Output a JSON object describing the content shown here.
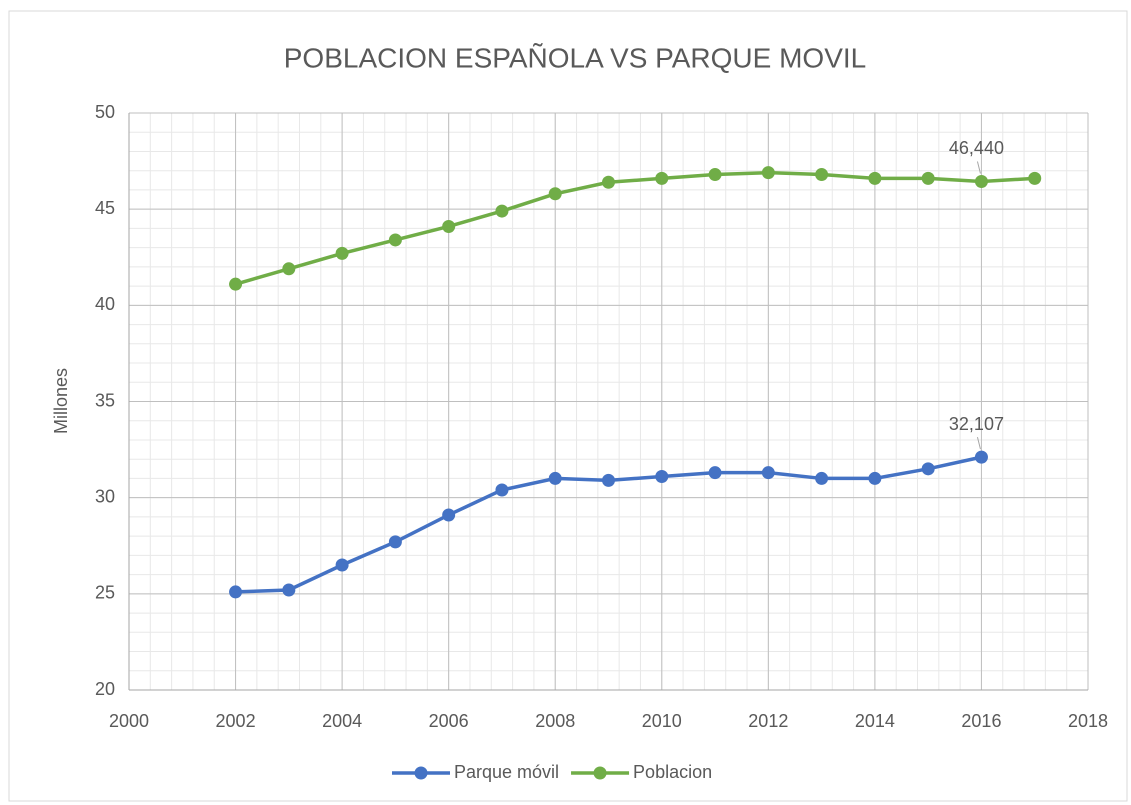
{
  "chart_data": {
    "type": "line",
    "title": "POBLACION ESPAÑOLA VS PARQUE MOVIL",
    "y_label": "Millones",
    "x": [
      2002,
      2003,
      2004,
      2005,
      2006,
      2007,
      2008,
      2009,
      2010,
      2011,
      2012,
      2013,
      2014,
      2015,
      2016,
      2017
    ],
    "series": [
      {
        "name": "Parque móvil",
        "color": "#4472c4",
        "values": [
          25.1,
          25.2,
          26.5,
          27.7,
          29.1,
          30.4,
          31.0,
          30.9,
          31.1,
          31.3,
          31.3,
          31.0,
          31.0,
          31.5,
          32.107,
          null
        ],
        "value_labels": [
          null,
          null,
          null,
          null,
          null,
          null,
          null,
          null,
          null,
          null,
          null,
          null,
          null,
          null,
          "32,107",
          null
        ]
      },
      {
        "name": "Poblacion",
        "color": "#70ad47",
        "values": [
          41.1,
          41.9,
          42.7,
          43.4,
          44.1,
          44.9,
          45.8,
          46.4,
          46.6,
          46.8,
          46.9,
          46.8,
          46.6,
          46.6,
          46.44,
          46.6
        ],
        "value_labels": [
          null,
          null,
          null,
          null,
          null,
          null,
          null,
          null,
          null,
          null,
          null,
          null,
          null,
          null,
          "46,440",
          null
        ]
      }
    ],
    "xlim": [
      2000,
      2018
    ],
    "xticks": [
      2000,
      2002,
      2004,
      2006,
      2008,
      2010,
      2012,
      2014,
      2016,
      2018
    ],
    "ylim": [
      20,
      50
    ],
    "yticks": [
      20,
      25,
      30,
      35,
      40,
      45,
      50
    ],
    "grid": true,
    "minor_grid": {
      "x": 0.4,
      "y": 1
    },
    "legend": "bottom"
  }
}
